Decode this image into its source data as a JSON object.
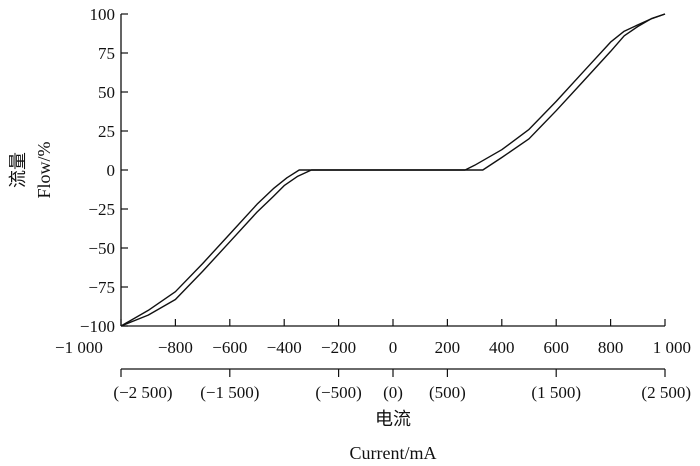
{
  "chart_data": {
    "type": "line",
    "xlabel_cn": "电流",
    "xlabel_en": "Current/mA",
    "ylabel_cn": "流量",
    "ylabel_en": "Flow/%",
    "xlim": [
      -1000,
      1000
    ],
    "ylim": [
      -100,
      100
    ],
    "x_ticks": [
      -1000,
      -800,
      -600,
      -400,
      -200,
      0,
      200,
      400,
      600,
      800,
      1000
    ],
    "x_tick_labels": [
      "−1 000",
      "−800",
      "−600",
      "−400",
      "−200",
      "0",
      "200",
      "400",
      "600",
      "800",
      "1 000"
    ],
    "x2_ticks": [
      -1000,
      -600,
      -200,
      0,
      200,
      600,
      1000
    ],
    "x2_tick_labels": [
      "(−2 500)",
      "(−1 500)",
      "(−500)",
      "(0)",
      "(500)",
      "(1 500)",
      "(2 500)"
    ],
    "y_ticks": [
      -100,
      -75,
      -50,
      -25,
      0,
      25,
      50,
      75,
      100
    ],
    "y_tick_labels": [
      "−100",
      "−75",
      "−50",
      "−25",
      "0",
      "25",
      "50",
      "75",
      "100"
    ],
    "grid": false,
    "colors": {
      "line": "#111111",
      "axis": "#111111"
    },
    "series": [
      {
        "x": [
          -1000,
          -900,
          -800,
          -700,
          -600,
          -500,
          -440,
          -390,
          -345,
          -200,
          0,
          200,
          265,
          300,
          400,
          500,
          600,
          700,
          800,
          850,
          900,
          950,
          1000
        ],
        "y": [
          -100,
          -90,
          -78,
          -60,
          -41,
          -22,
          -12,
          -5,
          0,
          0,
          0,
          0,
          0,
          3,
          13,
          26,
          44,
          63,
          82,
          89,
          93,
          97,
          100
        ]
      },
      {
        "x": [
          -1000,
          -900,
          -800,
          -700,
          -600,
          -500,
          -440,
          -400,
          -350,
          -300,
          -200,
          0,
          200,
          330,
          400,
          500,
          600,
          700,
          800,
          850,
          900,
          950,
          1000
        ],
        "y": [
          -100,
          -93,
          -83,
          -65,
          -46,
          -27,
          -17,
          -10,
          -4,
          0,
          0,
          0,
          0,
          0,
          8,
          20,
          38,
          57,
          76,
          86,
          92,
          97,
          100
        ]
      }
    ]
  }
}
